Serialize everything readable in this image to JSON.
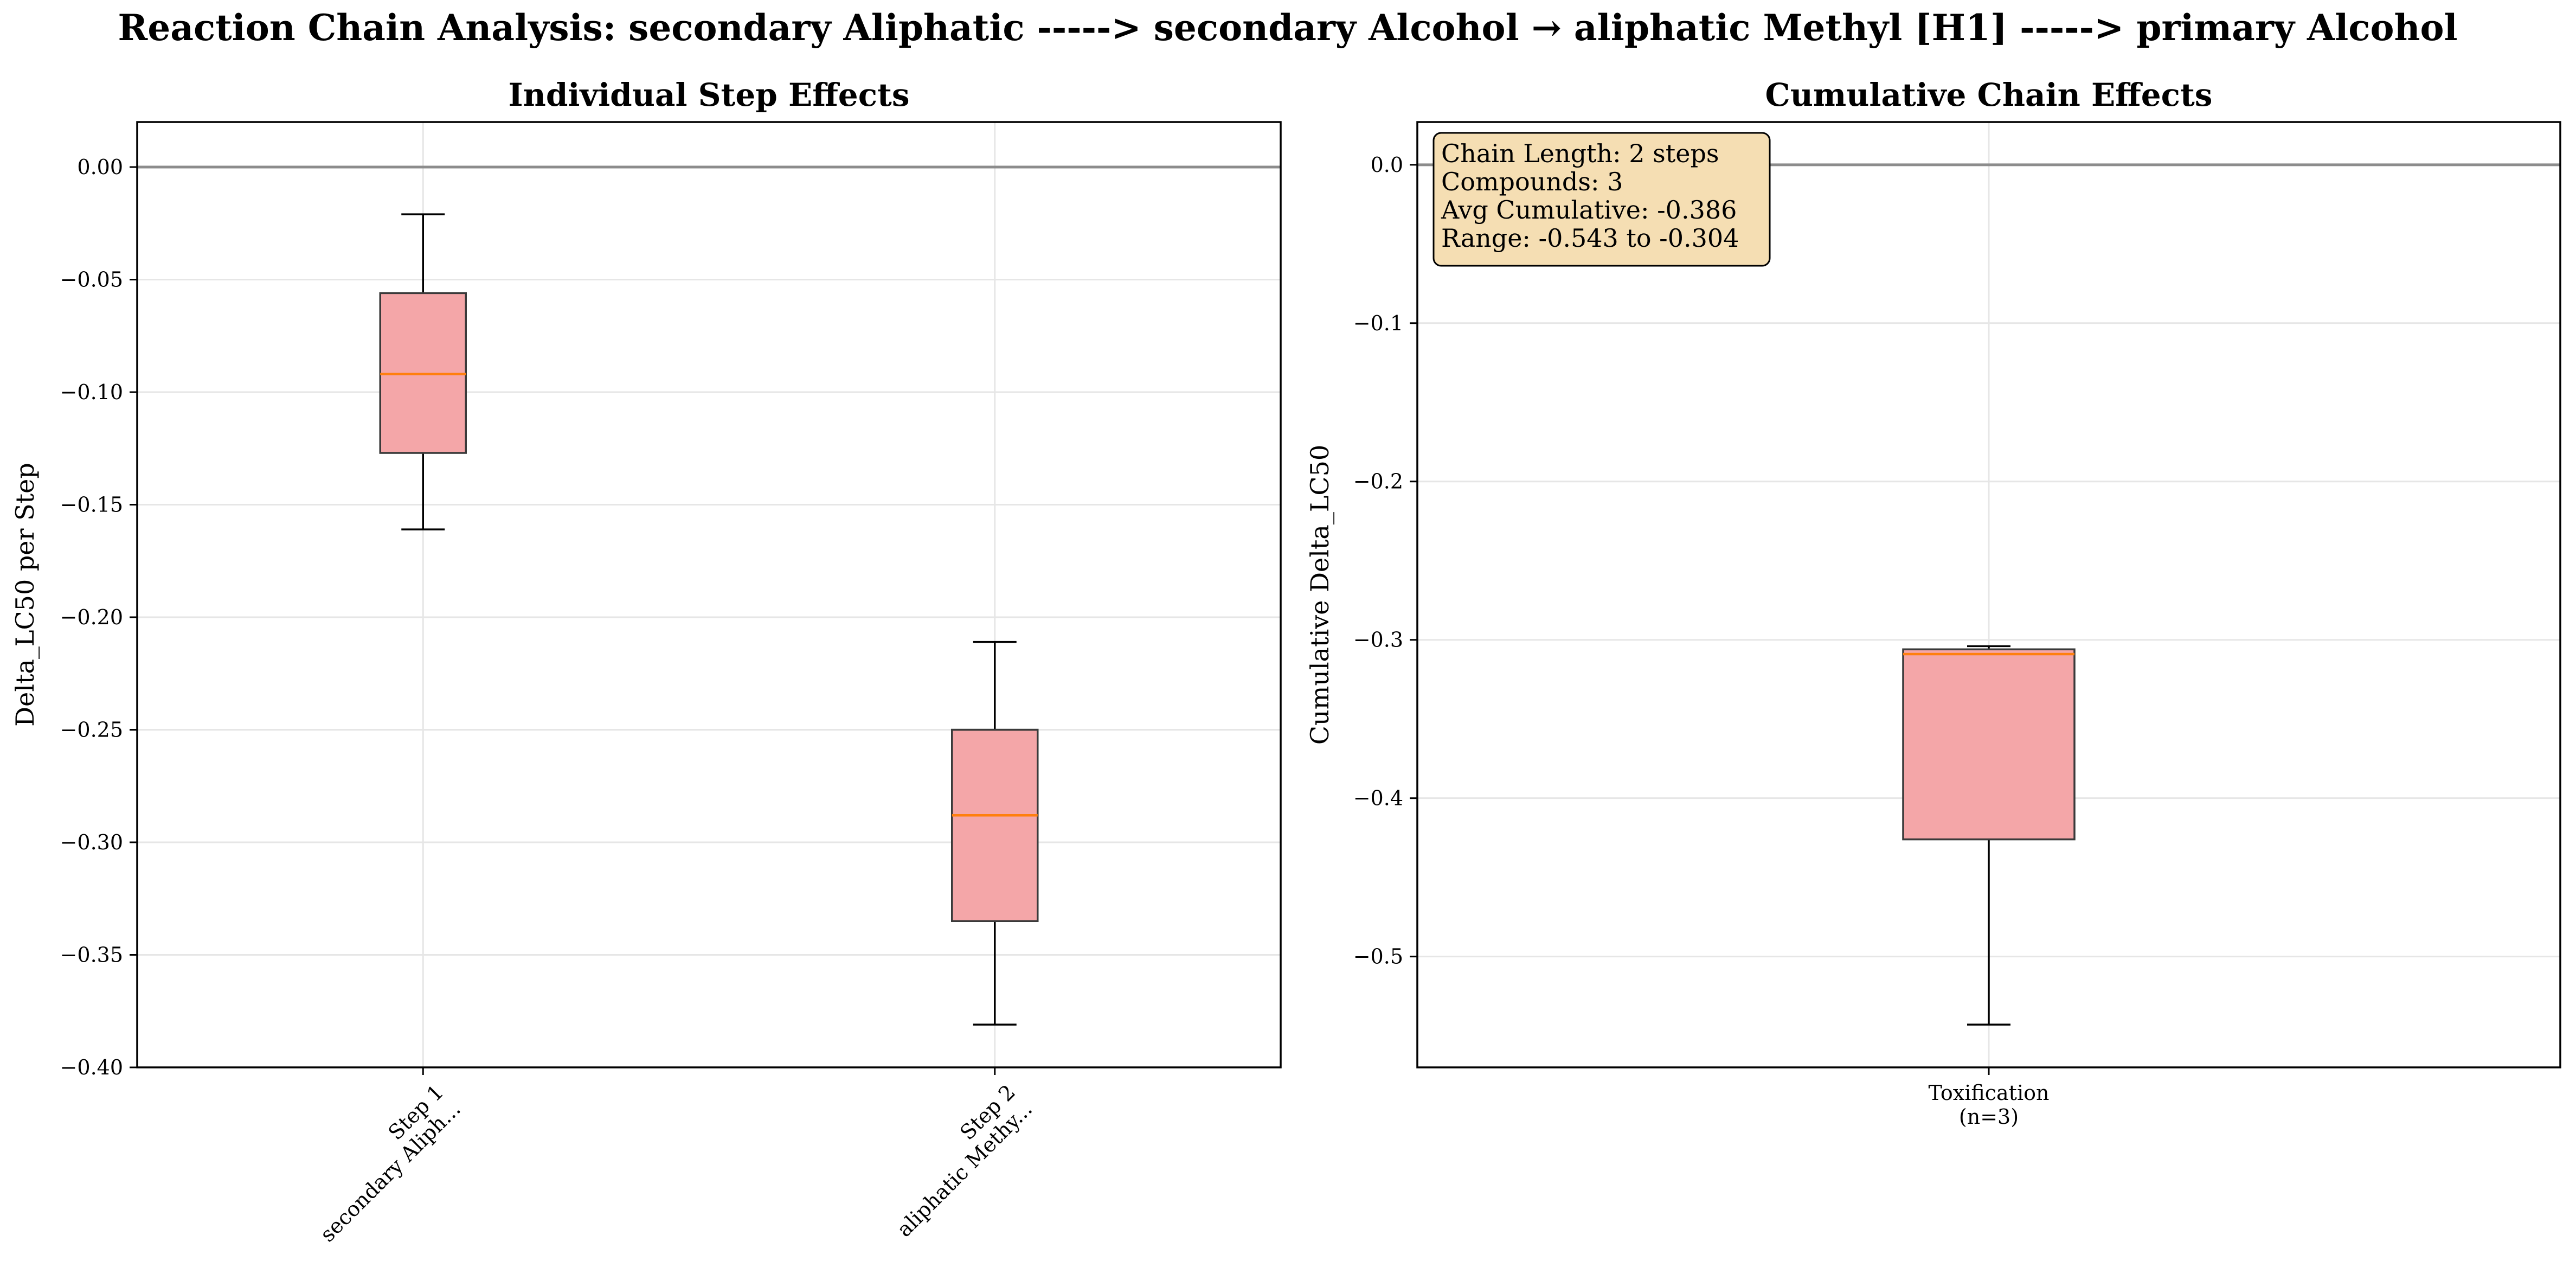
{
  "figure": {
    "title": "Reaction Chain Analysis: secondary Aliphatic -----> secondary Alcohol → aliphatic Methyl [H1] -----> primary Alcohol"
  },
  "chart_data": [
    {
      "type": "box",
      "title": "Individual Step Effects",
      "xlabel": "",
      "ylabel": "Delta_LC50 per Step",
      "ylim": [
        -0.4,
        0.02
      ],
      "yticks": [
        0.0,
        -0.05,
        -0.1,
        -0.15,
        -0.2,
        -0.25,
        -0.3,
        -0.35,
        -0.4
      ],
      "ytick_labels": [
        "0.00",
        "−0.05",
        "−0.10",
        "−0.15",
        "−0.20",
        "−0.25",
        "−0.30",
        "−0.35",
        "−0.40"
      ],
      "grid": true,
      "reference_line": 0.0,
      "categories": [
        {
          "line1": "Step 1",
          "line2": "secondary Aliph..."
        },
        {
          "line1": "Step 2",
          "line2": "aliphatic Methy..."
        }
      ],
      "boxes": [
        {
          "whisker_low": -0.161,
          "q1": -0.127,
          "median": -0.092,
          "q3": -0.056,
          "whisker_high": -0.021
        },
        {
          "whisker_low": -0.381,
          "q1": -0.335,
          "median": -0.288,
          "q3": -0.25,
          "whisker_high": -0.211
        }
      ],
      "colors": {
        "box_fill": "#f4a6a8",
        "box_edge": "#3a3a3a",
        "median": "#ff7f0e",
        "reference": "#8c8c8c"
      }
    },
    {
      "type": "box",
      "title": "Cumulative Chain Effects",
      "xlabel": "",
      "ylabel": "Cumulative Delta_LC50",
      "ylim": [
        -0.57,
        0.027
      ],
      "yticks": [
        0.0,
        -0.1,
        -0.2,
        -0.3,
        -0.4,
        -0.5
      ],
      "ytick_labels": [
        "0.0",
        "−0.1",
        "−0.2",
        "−0.3",
        "−0.4",
        "−0.5"
      ],
      "grid": true,
      "reference_line": 0.0,
      "categories": [
        {
          "line1": "Toxification",
          "line2": "(n=3)"
        }
      ],
      "boxes": [
        {
          "whisker_low": -0.543,
          "q1": -0.426,
          "median": -0.309,
          "q3": -0.306,
          "whisker_high": -0.304
        }
      ],
      "annotation": {
        "lines": [
          "Chain Length: 2 steps",
          "Compounds: 3",
          "Avg Cumulative: -0.386",
          "Range: -0.543 to -0.304"
        ],
        "placement": "top-left",
        "fill": "#f5deb3"
      },
      "colors": {
        "box_fill": "#f4a6a8",
        "box_edge": "#3a3a3a",
        "median": "#ff7f0e",
        "reference": "#8c8c8c"
      }
    }
  ]
}
